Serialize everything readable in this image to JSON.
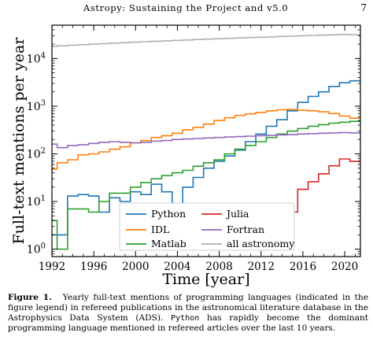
{
  "header": {
    "title": "Astropy: Sustaining the Project and v5.0",
    "page": "7"
  },
  "caption": {
    "label": "Figure 1.",
    "text_a": "Yearly full-text mentions of programming languages (indicated in the figure legend) in refereed publications in the astronomical literature database in the Astrophysics Data System (ADS).",
    "code": "Python",
    "text_b": "has rapidly become the dominant programming language mentioned in refereed articles over the last 10 years."
  },
  "chart_data": {
    "type": "line",
    "step": true,
    "xlabel": "Time [year]",
    "ylabel": "Full-text mentions per year",
    "xlim": [
      1992,
      2021.5
    ],
    "ylim": [
      0.7,
      50000
    ],
    "yscale": "log",
    "xticks": [
      1992,
      1996,
      2000,
      2004,
      2008,
      2012,
      2016,
      2020
    ],
    "yticks": [
      1,
      10,
      100,
      1000,
      10000
    ],
    "ytick_labels": [
      "10^0",
      "10^1",
      "10^2",
      "10^3",
      "10^4"
    ],
    "legend_position": "bottom-center",
    "x": [
      1992,
      1993,
      1994,
      1995,
      1996,
      1997,
      1998,
      1999,
      2000,
      2001,
      2002,
      2003,
      2004,
      2005,
      2006,
      2007,
      2008,
      2009,
      2010,
      2011,
      2012,
      2013,
      2014,
      2015,
      2016,
      2017,
      2018,
      2019,
      2020,
      2021
    ],
    "series": [
      {
        "name": "Python",
        "color": "#1f77b4",
        "values": [
          2,
          2,
          13,
          14,
          13,
          6,
          12,
          10,
          16,
          14,
          23,
          16,
          9,
          20,
          32,
          50,
          70,
          90,
          120,
          180,
          260,
          380,
          520,
          800,
          1200,
          1600,
          2000,
          2600,
          3100,
          3400
        ]
      },
      {
        "name": "IDL",
        "color": "#ff7f0e",
        "values": [
          48,
          65,
          75,
          95,
          100,
          110,
          125,
          140,
          170,
          190,
          220,
          240,
          270,
          320,
          360,
          420,
          500,
          570,
          640,
          690,
          740,
          800,
          840,
          860,
          820,
          800,
          760,
          700,
          620,
          560
        ]
      },
      {
        "name": "Matlab",
        "color": "#2ca02c",
        "values": [
          4,
          1,
          7,
          7,
          6,
          10,
          15,
          15,
          20,
          25,
          30,
          35,
          40,
          45,
          55,
          65,
          75,
          100,
          125,
          150,
          180,
          220,
          260,
          300,
          340,
          380,
          410,
          440,
          460,
          480
        ]
      },
      {
        "name": "Julia",
        "color": "#d62728",
        "values": [
          null,
          null,
          null,
          null,
          null,
          null,
          null,
          null,
          null,
          null,
          null,
          null,
          null,
          null,
          null,
          null,
          null,
          null,
          null,
          null,
          null,
          2.7,
          1,
          6,
          18,
          26,
          38,
          56,
          78,
          70
        ]
      },
      {
        "name": "Fortran",
        "color": "#9467bd",
        "values": [
          160,
          135,
          150,
          155,
          165,
          175,
          180,
          175,
          170,
          175,
          185,
          190,
          200,
          205,
          210,
          215,
          220,
          225,
          230,
          235,
          240,
          245,
          250,
          255,
          260,
          265,
          270,
          275,
          280,
          275
        ]
      },
      {
        "name": "all astronomy",
        "color": "#b0b0b0",
        "values": [
          18000,
          18500,
          19000,
          19500,
          20000,
          20500,
          21000,
          21500,
          22000,
          22500,
          23000,
          23500,
          24000,
          24500,
          25000,
          25500,
          26000,
          26500,
          27000,
          27500,
          28000,
          28500,
          29000,
          29500,
          30000,
          30500,
          31000,
          31500,
          32000,
          31500
        ]
      }
    ]
  }
}
